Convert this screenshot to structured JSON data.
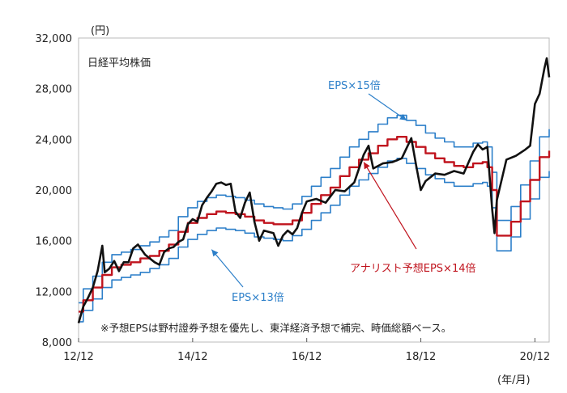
{
  "chart_data": {
    "type": "line",
    "title": "日経平均株価",
    "unit_label": "(円)",
    "xunit_label": "(年/月)",
    "footnote": "※予想EPSは野村證券予想を優先し、東洋経済予想で補完、時価総額ベース。",
    "xlim": [
      2012.917,
      2021.167
    ],
    "ylim": [
      8000,
      32000
    ],
    "yticks": [
      8000,
      12000,
      16000,
      20000,
      24000,
      28000,
      32000
    ],
    "ytick_labels": [
      "8,000",
      "12,000",
      "16,000",
      "20,000",
      "24,000",
      "28,000",
      "32,000"
    ],
    "xticks": [
      2012.917,
      2014.917,
      2016.917,
      2018.917,
      2020.917
    ],
    "xtick_labels": [
      "12/12",
      "14/12",
      "16/12",
      "18/12",
      "20/12"
    ],
    "colors": {
      "nikkei": "#111111",
      "eps15": "#2c7fc9",
      "eps14": "#c0141e",
      "eps13": "#2c7fc9"
    },
    "series": [
      {
        "name": "日経平均株価",
        "key": "nikkei",
        "x": [
          2012.917,
          2013.0,
          2013.083,
          2013.167,
          2013.25,
          2013.333,
          2013.375,
          2013.458,
          2013.542,
          2013.625,
          2013.708,
          2013.792,
          2013.875,
          2013.958,
          2014.083,
          2014.167,
          2014.25,
          2014.333,
          2014.417,
          2014.5,
          2014.583,
          2014.667,
          2014.75,
          2014.833,
          2014.917,
          2015.0,
          2015.083,
          2015.167,
          2015.25,
          2015.333,
          2015.417,
          2015.5,
          2015.583,
          2015.667,
          2015.75,
          2015.833,
          2015.917,
          2016.0,
          2016.083,
          2016.167,
          2016.25,
          2016.333,
          2016.417,
          2016.5,
          2016.583,
          2016.667,
          2016.75,
          2016.833,
          2016.917,
          2017.083,
          2017.25,
          2017.417,
          2017.583,
          2017.75,
          2017.917,
          2018.0,
          2018.083,
          2018.25,
          2018.417,
          2018.583,
          2018.75,
          2018.833,
          2018.917,
          2019.0,
          2019.167,
          2019.333,
          2019.5,
          2019.667,
          2019.833,
          2019.917,
          2020.0,
          2020.083,
          2020.167,
          2020.208,
          2020.25,
          2020.333,
          2020.417,
          2020.583,
          2020.75,
          2020.833,
          2020.917,
          2021.0,
          2021.083,
          2021.125,
          2021.167
        ],
        "values": [
          9500,
          10800,
          11500,
          12300,
          13600,
          15600,
          13500,
          13800,
          14400,
          13600,
          14300,
          14300,
          15400,
          15700,
          14900,
          14600,
          14300,
          14100,
          15100,
          15400,
          15500,
          15900,
          16100,
          17300,
          17700,
          17500,
          18800,
          19400,
          19900,
          20500,
          20600,
          20400,
          20500,
          18300,
          17800,
          19000,
          19800,
          17500,
          16000,
          16800,
          16700,
          16600,
          15600,
          16400,
          16800,
          16500,
          17000,
          18200,
          19100,
          19300,
          19000,
          20000,
          19900,
          20600,
          22800,
          23500,
          21700,
          22100,
          22200,
          22500,
          24100,
          22000,
          20000,
          20700,
          21300,
          21200,
          21500,
          21300,
          23000,
          23600,
          23200,
          23400,
          18500,
          16600,
          19200,
          20800,
          22400,
          22700,
          23200,
          23500,
          26800,
          27600,
          29600,
          30400,
          28900
        ]
      },
      {
        "name": "EPS×15倍",
        "key": "eps15",
        "x": [
          2012.917,
          2013.0,
          2013.167,
          2013.333,
          2013.5,
          2013.667,
          2013.833,
          2014.0,
          2014.167,
          2014.333,
          2014.5,
          2014.667,
          2014.833,
          2015.0,
          2015.167,
          2015.333,
          2015.5,
          2015.667,
          2015.833,
          2016.0,
          2016.167,
          2016.333,
          2016.5,
          2016.667,
          2016.833,
          2017.0,
          2017.167,
          2017.333,
          2017.5,
          2017.667,
          2017.833,
          2018.0,
          2018.167,
          2018.333,
          2018.5,
          2018.667,
          2018.833,
          2019.0,
          2019.167,
          2019.333,
          2019.5,
          2019.667,
          2019.833,
          2020.0,
          2020.083,
          2020.167,
          2020.25,
          2020.333,
          2020.5,
          2020.667,
          2020.833,
          2021.0,
          2021.167
        ],
        "values": [
          11100,
          12200,
          13200,
          14300,
          14900,
          15100,
          15300,
          15600,
          15900,
          16300,
          16800,
          17900,
          18600,
          19100,
          19400,
          19600,
          19500,
          19400,
          19200,
          18900,
          18700,
          18600,
          18500,
          18900,
          19500,
          20300,
          21000,
          21700,
          22600,
          23400,
          24000,
          24600,
          25200,
          25700,
          25900,
          25500,
          25100,
          24500,
          24100,
          23800,
          23400,
          23400,
          23700,
          23800,
          23400,
          21400,
          17600,
          17600,
          18700,
          20400,
          22300,
          24200,
          24800
        ]
      },
      {
        "name": "アナリスト予想EPS×14倍",
        "key": "eps14",
        "x": [
          2012.917,
          2013.0,
          2013.167,
          2013.333,
          2013.5,
          2013.667,
          2013.833,
          2014.0,
          2014.167,
          2014.333,
          2014.5,
          2014.667,
          2014.833,
          2015.0,
          2015.167,
          2015.333,
          2015.5,
          2015.667,
          2015.833,
          2016.0,
          2016.167,
          2016.333,
          2016.5,
          2016.667,
          2016.833,
          2017.0,
          2017.167,
          2017.333,
          2017.5,
          2017.667,
          2017.833,
          2018.0,
          2018.167,
          2018.333,
          2018.5,
          2018.667,
          2018.833,
          2019.0,
          2019.167,
          2019.333,
          2019.5,
          2019.667,
          2019.833,
          2020.0,
          2020.083,
          2020.167,
          2020.25,
          2020.333,
          2020.5,
          2020.667,
          2020.833,
          2021.0,
          2021.167
        ],
        "values": [
          10400,
          11300,
          12300,
          13300,
          13900,
          14100,
          14300,
          14600,
          14800,
          15200,
          15700,
          16700,
          17400,
          17800,
          18100,
          18300,
          18200,
          18100,
          17900,
          17600,
          17400,
          17300,
          17300,
          17600,
          18200,
          18900,
          19600,
          20200,
          21100,
          21800,
          22400,
          22900,
          23500,
          24000,
          24200,
          23800,
          23400,
          22900,
          22500,
          22200,
          21900,
          21800,
          22100,
          22200,
          21800,
          20000,
          16400,
          16400,
          17500,
          19100,
          20800,
          22600,
          23100
        ]
      },
      {
        "name": "EPS×13倍",
        "key": "eps13",
        "x": [
          2012.917,
          2013.0,
          2013.167,
          2013.333,
          2013.5,
          2013.667,
          2013.833,
          2014.0,
          2014.167,
          2014.333,
          2014.5,
          2014.667,
          2014.833,
          2015.0,
          2015.167,
          2015.333,
          2015.5,
          2015.667,
          2015.833,
          2016.0,
          2016.167,
          2016.333,
          2016.5,
          2016.667,
          2016.833,
          2017.0,
          2017.167,
          2017.333,
          2017.5,
          2017.667,
          2017.833,
          2018.0,
          2018.167,
          2018.333,
          2018.5,
          2018.667,
          2018.833,
          2019.0,
          2019.167,
          2019.333,
          2019.5,
          2019.667,
          2019.833,
          2020.0,
          2020.083,
          2020.167,
          2020.25,
          2020.333,
          2020.5,
          2020.667,
          2020.833,
          2021.0,
          2021.167
        ],
        "values": [
          9600,
          10500,
          11400,
          12300,
          12900,
          13100,
          13300,
          13500,
          13800,
          14100,
          14600,
          15500,
          16100,
          16500,
          16800,
          17000,
          16900,
          16800,
          16600,
          16300,
          16200,
          16100,
          16000,
          16400,
          16900,
          17600,
          18200,
          18800,
          19600,
          20300,
          20800,
          21300,
          21800,
          22300,
          22500,
          22100,
          21700,
          21200,
          20900,
          20600,
          20300,
          20300,
          20500,
          20600,
          20300,
          18600,
          15200,
          15200,
          16300,
          17700,
          19300,
          21000,
          21500
        ]
      }
    ],
    "annotations": [
      {
        "text": "EPS×15倍",
        "series": "eps15",
        "at": [
          2018.667,
          25500
        ]
      },
      {
        "text": "アナリスト予想EPS×14倍",
        "series": "eps14",
        "at": [
          2017.917,
          22200
        ]
      },
      {
        "text": "EPS×13倍",
        "series": "eps13",
        "at": [
          2015.25,
          15300
        ]
      }
    ]
  }
}
